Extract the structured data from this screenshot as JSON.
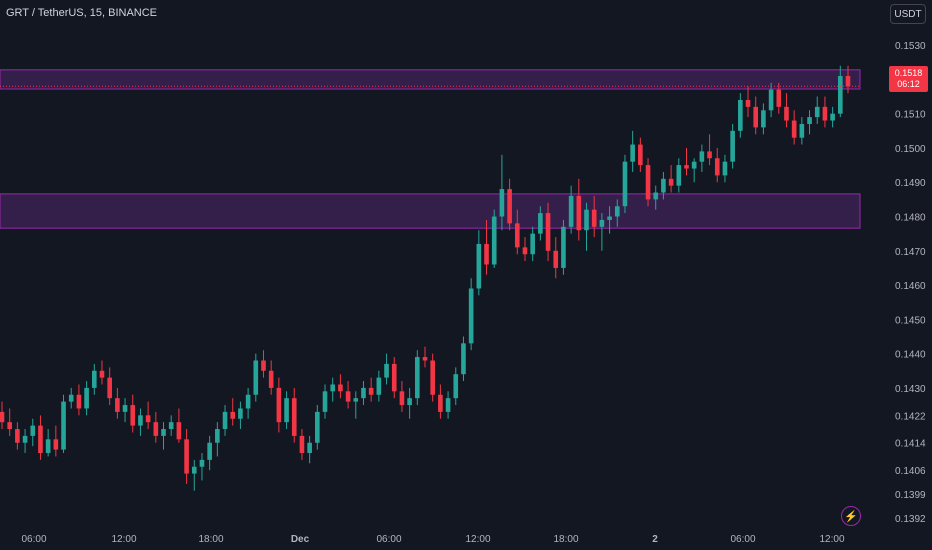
{
  "header": {
    "symbol": "GRT / TetherUS, 15, BINANCE",
    "currency": "USDT"
  },
  "price_badge": {
    "price": "0.1518",
    "countdown": "06:12"
  },
  "colors": {
    "background": "#131722",
    "up": "#26a69a",
    "down": "#f23645",
    "zone_fill": "#5c2a7a",
    "zone_border": "#9c27b0",
    "text": "#b2b5be"
  },
  "icons": {
    "bolt": "lightning-icon"
  },
  "chart_data": {
    "type": "candlestick",
    "title": "GRT / TetherUS, 15, BINANCE",
    "xlabel": "",
    "ylabel": "",
    "ylim": [
      0.139,
      0.1535
    ],
    "y_ticks": [
      "0.1530",
      "0.1520",
      "0.1510",
      "0.1500",
      "0.1490",
      "0.1480",
      "0.1470",
      "0.1460",
      "0.1450",
      "0.1440",
      "0.1430",
      "0.1422",
      "0.1414",
      "0.1406",
      "0.1399",
      "0.1392"
    ],
    "x_ticks": [
      "06:00",
      "12:00",
      "18:00",
      "Dec",
      "06:00",
      "12:00",
      "18:00",
      "2",
      "06:00",
      "12:00"
    ],
    "grid": false,
    "zones": [
      {
        "low": 0.15172,
        "high": 0.15228
      },
      {
        "low": 0.14766,
        "high": 0.14866
      }
    ],
    "last_price": 0.1518,
    "current_price_line": 0.1518,
    "candles": [
      [
        0.1423,
        0.1426,
        0.1418,
        0.142
      ],
      [
        0.142,
        0.1424,
        0.1416,
        0.1418
      ],
      [
        0.1418,
        0.142,
        0.1412,
        0.1414
      ],
      [
        0.1414,
        0.1418,
        0.1411,
        0.1416
      ],
      [
        0.1416,
        0.1421,
        0.1413,
        0.1419
      ],
      [
        0.1419,
        0.1422,
        0.1409,
        0.1411
      ],
      [
        0.1411,
        0.1418,
        0.141,
        0.1415
      ],
      [
        0.1415,
        0.1419,
        0.141,
        0.1412
      ],
      [
        0.1412,
        0.1428,
        0.1411,
        0.1426
      ],
      [
        0.1426,
        0.143,
        0.1424,
        0.1428
      ],
      [
        0.1428,
        0.1431,
        0.1422,
        0.1424
      ],
      [
        0.1424,
        0.1432,
        0.1422,
        0.143
      ],
      [
        0.143,
        0.1437,
        0.1428,
        0.1435
      ],
      [
        0.1435,
        0.1438,
        0.1431,
        0.1433
      ],
      [
        0.1433,
        0.1436,
        0.1425,
        0.1427
      ],
      [
        0.1427,
        0.143,
        0.1421,
        0.1423
      ],
      [
        0.1423,
        0.1427,
        0.142,
        0.1425
      ],
      [
        0.1425,
        0.1428,
        0.1417,
        0.1419
      ],
      [
        0.1419,
        0.1424,
        0.1416,
        0.1422
      ],
      [
        0.1422,
        0.1426,
        0.1418,
        0.142
      ],
      [
        0.142,
        0.1423,
        0.1414,
        0.1416
      ],
      [
        0.1416,
        0.142,
        0.1412,
        0.1418
      ],
      [
        0.1418,
        0.1422,
        0.1416,
        0.142
      ],
      [
        0.142,
        0.1424,
        0.1414,
        0.1415
      ],
      [
        0.1415,
        0.1418,
        0.1402,
        0.1405
      ],
      [
        0.1405,
        0.1409,
        0.14,
        0.1407
      ],
      [
        0.1407,
        0.1411,
        0.1403,
        0.1409
      ],
      [
        0.1409,
        0.1416,
        0.1406,
        0.1414
      ],
      [
        0.1414,
        0.142,
        0.141,
        0.1418
      ],
      [
        0.1418,
        0.1425,
        0.1416,
        0.1423
      ],
      [
        0.1423,
        0.1427,
        0.1419,
        0.1421
      ],
      [
        0.1421,
        0.1426,
        0.1418,
        0.1424
      ],
      [
        0.1424,
        0.143,
        0.1421,
        0.1428
      ],
      [
        0.1428,
        0.144,
        0.1426,
        0.1438
      ],
      [
        0.1438,
        0.1441,
        0.1433,
        0.1435
      ],
      [
        0.1435,
        0.1438,
        0.1428,
        0.143
      ],
      [
        0.143,
        0.1433,
        0.1417,
        0.142
      ],
      [
        0.142,
        0.1429,
        0.1418,
        0.1427
      ],
      [
        0.1427,
        0.143,
        0.1414,
        0.1416
      ],
      [
        0.1416,
        0.1418,
        0.1409,
        0.1411
      ],
      [
        0.1411,
        0.1416,
        0.1408,
        0.1414
      ],
      [
        0.1414,
        0.1425,
        0.1412,
        0.1423
      ],
      [
        0.1423,
        0.1431,
        0.1421,
        0.1429
      ],
      [
        0.1429,
        0.1433,
        0.1426,
        0.1431
      ],
      [
        0.1431,
        0.1434,
        0.1427,
        0.1429
      ],
      [
        0.1429,
        0.1432,
        0.1424,
        0.1426
      ],
      [
        0.1426,
        0.1429,
        0.1421,
        0.1427
      ],
      [
        0.1427,
        0.1432,
        0.1425,
        0.143
      ],
      [
        0.143,
        0.1433,
        0.1426,
        0.1428
      ],
      [
        0.1428,
        0.1435,
        0.1426,
        0.1433
      ],
      [
        0.1433,
        0.144,
        0.1431,
        0.1437
      ],
      [
        0.1437,
        0.1439,
        0.1427,
        0.1429
      ],
      [
        0.1429,
        0.1432,
        0.1423,
        0.1425
      ],
      [
        0.1425,
        0.143,
        0.1421,
        0.1427
      ],
      [
        0.1427,
        0.1441,
        0.1425,
        0.1439
      ],
      [
        0.1439,
        0.1442,
        0.1436,
        0.1438
      ],
      [
        0.1438,
        0.144,
        0.1426,
        0.1428
      ],
      [
        0.1428,
        0.1431,
        0.1421,
        0.1423
      ],
      [
        0.1423,
        0.1429,
        0.1421,
        0.1427
      ],
      [
        0.1427,
        0.1436,
        0.1425,
        0.1434
      ],
      [
        0.1434,
        0.1445,
        0.1432,
        0.1443
      ],
      [
        0.1443,
        0.1462,
        0.1441,
        0.1459
      ],
      [
        0.1459,
        0.1476,
        0.1457,
        0.1472
      ],
      [
        0.1472,
        0.1479,
        0.1463,
        0.1466
      ],
      [
        0.1466,
        0.1482,
        0.1465,
        0.148
      ],
      [
        0.148,
        0.1498,
        0.1476,
        0.1488
      ],
      [
        0.1488,
        0.1491,
        0.1476,
        0.1478
      ],
      [
        0.1478,
        0.1482,
        0.1469,
        0.1471
      ],
      [
        0.1471,
        0.1474,
        0.1467,
        0.1469
      ],
      [
        0.1469,
        0.1477,
        0.1467,
        0.1475
      ],
      [
        0.1475,
        0.1483,
        0.1473,
        0.1481
      ],
      [
        0.1481,
        0.1484,
        0.1467,
        0.147
      ],
      [
        0.147,
        0.1474,
        0.1462,
        0.1465
      ],
      [
        0.1465,
        0.1479,
        0.1463,
        0.1477
      ],
      [
        0.1477,
        0.1489,
        0.1475,
        0.1486
      ],
      [
        0.1486,
        0.1491,
        0.1473,
        0.1476
      ],
      [
        0.1476,
        0.1484,
        0.147,
        0.1482
      ],
      [
        0.1482,
        0.1486,
        0.1474,
        0.1477
      ],
      [
        0.1477,
        0.1481,
        0.147,
        0.1479
      ],
      [
        0.1479,
        0.1483,
        0.1475,
        0.148
      ],
      [
        0.148,
        0.1485,
        0.1477,
        0.1483
      ],
      [
        0.1483,
        0.1498,
        0.1481,
        0.1496
      ],
      [
        0.1496,
        0.1505,
        0.1493,
        0.1501
      ],
      [
        0.1501,
        0.1503,
        0.1493,
        0.1495
      ],
      [
        0.1495,
        0.1497,
        0.1483,
        0.1485
      ],
      [
        0.1485,
        0.1489,
        0.1482,
        0.1487
      ],
      [
        0.1487,
        0.1493,
        0.1485,
        0.1491
      ],
      [
        0.1491,
        0.1495,
        0.1487,
        0.1489
      ],
      [
        0.1489,
        0.1497,
        0.1487,
        0.1495
      ],
      [
        0.1495,
        0.15,
        0.1492,
        0.1494
      ],
      [
        0.1494,
        0.1497,
        0.149,
        0.1496
      ],
      [
        0.1496,
        0.1501,
        0.1493,
        0.1499
      ],
      [
        0.1499,
        0.1504,
        0.1495,
        0.1497
      ],
      [
        0.1497,
        0.15,
        0.149,
        0.1492
      ],
      [
        0.1492,
        0.1498,
        0.149,
        0.1496
      ],
      [
        0.1496,
        0.1507,
        0.1494,
        0.1505
      ],
      [
        0.1505,
        0.1516,
        0.1503,
        0.1514
      ],
      [
        0.1514,
        0.1518,
        0.1509,
        0.1512
      ],
      [
        0.1512,
        0.1515,
        0.1504,
        0.1506
      ],
      [
        0.1506,
        0.1513,
        0.1504,
        0.1511
      ],
      [
        0.1511,
        0.1519,
        0.1509,
        0.1517
      ],
      [
        0.1517,
        0.1519,
        0.151,
        0.1512
      ],
      [
        0.1512,
        0.1516,
        0.1506,
        0.1508
      ],
      [
        0.1508,
        0.1511,
        0.1501,
        0.1503
      ],
      [
        0.1503,
        0.1509,
        0.1501,
        0.1507
      ],
      [
        0.1507,
        0.1511,
        0.1504,
        0.1509
      ],
      [
        0.1509,
        0.1515,
        0.1507,
        0.1512
      ],
      [
        0.1512,
        0.1515,
        0.1506,
        0.1508
      ],
      [
        0.1508,
        0.1512,
        0.1506,
        0.151
      ],
      [
        0.151,
        0.1524,
        0.1509,
        0.1521
      ],
      [
        0.1521,
        0.1524,
        0.1516,
        0.1518
      ]
    ]
  }
}
